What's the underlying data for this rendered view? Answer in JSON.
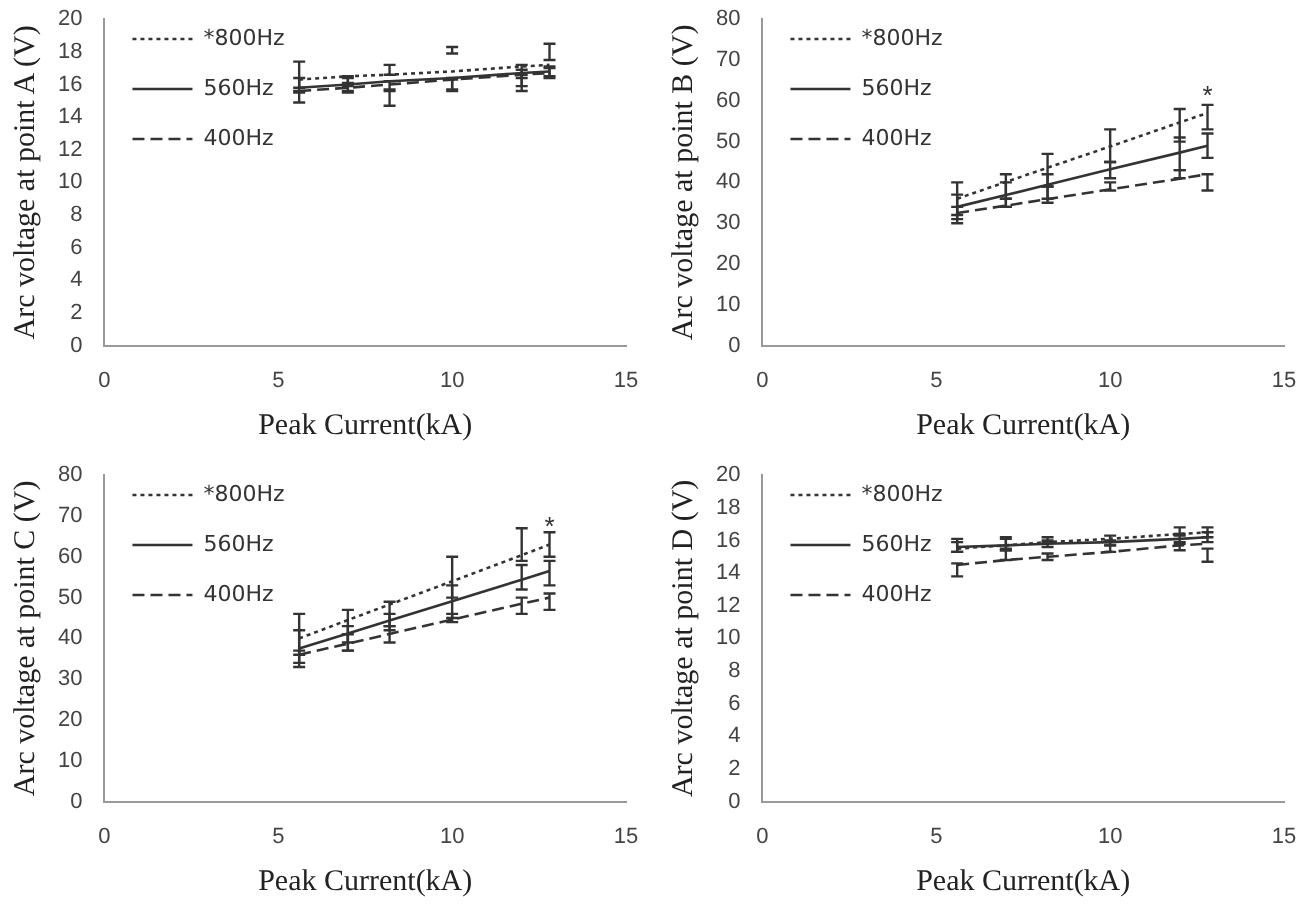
{
  "chart_data": [
    {
      "type": "line",
      "xlabel": "Peak Current(kA)",
      "ylabel": "Arc voltage at point A (V)",
      "x": [
        5.6,
        7,
        8.2,
        10,
        12,
        12.8
      ],
      "xlim": [
        0,
        15
      ],
      "xticks": [
        0,
        5,
        10,
        15
      ],
      "ylim": [
        0,
        20
      ],
      "yticks": [
        0,
        2,
        4,
        6,
        8,
        10,
        12,
        14,
        16,
        18,
        20
      ],
      "grid": false,
      "legend": "top left",
      "series": [
        {
          "name": "*800Hz",
          "line_style": "dotted",
          "color": "#333333",
          "values": [
            16.3,
            16.5,
            16.6,
            16.8,
            17.1,
            17.2
          ],
          "errors": [
            [
              15.8,
              17.4
            ],
            [
              15.9,
              16.5
            ],
            [
              16.6,
              17.2
            ],
            [
              17.9,
              18.3
            ],
            [
              16.4,
              17.2
            ],
            [
              17.5,
              18.5
            ]
          ]
        },
        {
          "name": "560Hz",
          "line_style": "solid",
          "color": "#333333",
          "values": [
            15.8,
            16.0,
            16.2,
            16.4,
            16.7,
            16.8
          ],
          "errors": [
            [
              15.6,
              16.4
            ],
            [
              15.6,
              16.4
            ],
            [
              15.6,
              16.2
            ],
            [
              15.6,
              16.4
            ],
            [
              15.9,
              16.9
            ],
            [
              16.5,
              17.1
            ]
          ]
        },
        {
          "name": "400Hz",
          "line_style": "dashed",
          "color": "#333333",
          "values": [
            15.6,
            15.8,
            16.0,
            16.3,
            16.6,
            16.7
          ],
          "errors": [
            [
              14.9,
              15.5
            ],
            [
              15.5,
              16.1
            ],
            [
              14.7,
              15.7
            ],
            [
              15.7,
              16.3
            ],
            [
              15.6,
              16.6
            ],
            [
              16.4,
              17.0
            ]
          ]
        }
      ]
    },
    {
      "type": "line",
      "xlabel": "Peak Current(kA)",
      "ylabel": "Arc voltage at point B (V)",
      "x": [
        5.6,
        7,
        8.2,
        10,
        12,
        12.8
      ],
      "xlim": [
        0,
        15
      ],
      "xticks": [
        0,
        5,
        10,
        15
      ],
      "ylim": [
        0,
        80
      ],
      "yticks": [
        0,
        10,
        20,
        30,
        40,
        50,
        60,
        70,
        80
      ],
      "grid": false,
      "legend": "top left",
      "annotations": [
        {
          "text": "*",
          "x": 12.8,
          "y": 61
        }
      ],
      "series": [
        {
          "name": "*800Hz",
          "line_style": "dotted",
          "color": "#333333",
          "values": [
            36,
            40.1,
            43.6,
            48.8,
            54.7,
            57
          ],
          "errors": [
            [
              32,
              40
            ],
            [
              36,
              42
            ],
            [
              39,
              47
            ],
            [
              45,
              53
            ],
            [
              50,
              58
            ],
            [
              53,
              59
            ]
          ]
        },
        {
          "name": "560Hz",
          "line_style": "solid",
          "color": "#333333",
          "values": [
            34,
            36.9,
            39.4,
            43.2,
            47.3,
            49
          ],
          "errors": [
            [
              31,
              37
            ],
            [
              34,
              40
            ],
            [
              36,
              42
            ],
            [
              41,
              45
            ],
            [
              43,
              51
            ],
            [
              46,
              52
            ]
          ]
        },
        {
          "name": "400Hz",
          "line_style": "dashed",
          "color": "#333333",
          "values": [
            32.5,
            34.3,
            35.9,
            38.3,
            40.9,
            42
          ],
          "errors": [
            [
              30,
              34
            ],
            [
              34,
              36
            ],
            [
              35,
              39
            ],
            [
              38,
              40
            ],
            [
              41,
              43
            ],
            [
              38,
              42
            ]
          ]
        }
      ]
    },
    {
      "type": "line",
      "xlabel": "Peak Current(kA)",
      "ylabel": "Arc voltage at point C (V)",
      "x": [
        5.6,
        7,
        8.2,
        10,
        12,
        12.8
      ],
      "xlim": [
        0,
        15
      ],
      "xticks": [
        0,
        5,
        10,
        15
      ],
      "ylim": [
        0,
        80
      ],
      "yticks": [
        0,
        10,
        20,
        30,
        40,
        50,
        60,
        70,
        80
      ],
      "grid": false,
      "legend": "top left",
      "annotations": [
        {
          "text": "*",
          "x": 12.8,
          "y": 67
        }
      ],
      "series": [
        {
          "name": "*800Hz",
          "line_style": "dotted",
          "color": "#333333",
          "values": [
            40,
            44.5,
            48.3,
            54.0,
            60.4,
            63
          ],
          "errors": [
            [
              36,
              46
            ],
            [
              39,
              47
            ],
            [
              43,
              49
            ],
            [
              50,
              60
            ],
            [
              59,
              67
            ],
            [
              60,
              66
            ]
          ]
        },
        {
          "name": "560Hz",
          "line_style": "solid",
          "color": "#333333",
          "values": [
            37.5,
            41.2,
            44.4,
            49.1,
            54.4,
            56.5
          ],
          "errors": [
            [
              34,
              42
            ],
            [
              37,
              43
            ],
            [
              42,
              46
            ],
            [
              45,
              53
            ],
            [
              52,
              58
            ],
            [
              53,
              59
            ]
          ]
        },
        {
          "name": "400Hz",
          "line_style": "dashed",
          "color": "#333333",
          "values": [
            36,
            38.7,
            41.1,
            44.6,
            48.5,
            50
          ],
          "errors": [
            [
              33,
              37
            ],
            [
              37,
              41
            ],
            [
              39,
              43
            ],
            [
              44,
              46
            ],
            [
              46,
              50
            ],
            [
              47,
              51
            ]
          ]
        }
      ]
    },
    {
      "type": "line",
      "xlabel": "Peak Current(kA)",
      "ylabel": "Arc voltage at point D (V)",
      "x": [
        5.6,
        7,
        8.2,
        10,
        12,
        12.8
      ],
      "xlim": [
        0,
        15
      ],
      "xticks": [
        0,
        5,
        10,
        15
      ],
      "ylim": [
        0,
        20
      ],
      "yticks": [
        0,
        2,
        4,
        6,
        8,
        10,
        12,
        14,
        16,
        18,
        20
      ],
      "grid": false,
      "legend": "top left",
      "series": [
        {
          "name": "*800Hz",
          "line_style": "dotted",
          "color": "#333333",
          "values": [
            15.5,
            15.7,
            15.9,
            16.1,
            16.4,
            16.5
          ],
          "errors": [
            [
              15.3,
              16.1
            ],
            [
              15.4,
              16.2
            ],
            [
              15.9,
              16.2
            ],
            [
              15.9,
              16.3
            ],
            [
              16.4,
              16.8
            ],
            [
              16.2,
              16.8
            ]
          ]
        },
        {
          "name": "560Hz",
          "line_style": "solid",
          "color": "#333333",
          "values": [
            15.6,
            15.7,
            15.8,
            15.9,
            16.1,
            16.2
          ],
          "errors": [
            [
              15.3,
              15.9
            ],
            [
              15.5,
              16.1
            ],
            [
              15.6,
              16.0
            ],
            [
              15.7,
              16.0
            ],
            [
              15.9,
              16.3
            ],
            [
              15.9,
              16.5
            ]
          ]
        },
        {
          "name": "400Hz",
          "line_style": "dashed",
          "color": "#333333",
          "values": [
            14.5,
            14.8,
            15.0,
            15.3,
            15.7,
            15.8
          ],
          "errors": [
            [
              13.8,
              14.6
            ],
            [
              14.8,
              15.4
            ],
            [
              14.8,
              15.2
            ],
            [
              15.3,
              15.7
            ],
            [
              15.4,
              15.8
            ],
            [
              14.7,
              15.5
            ]
          ]
        }
      ]
    }
  ]
}
